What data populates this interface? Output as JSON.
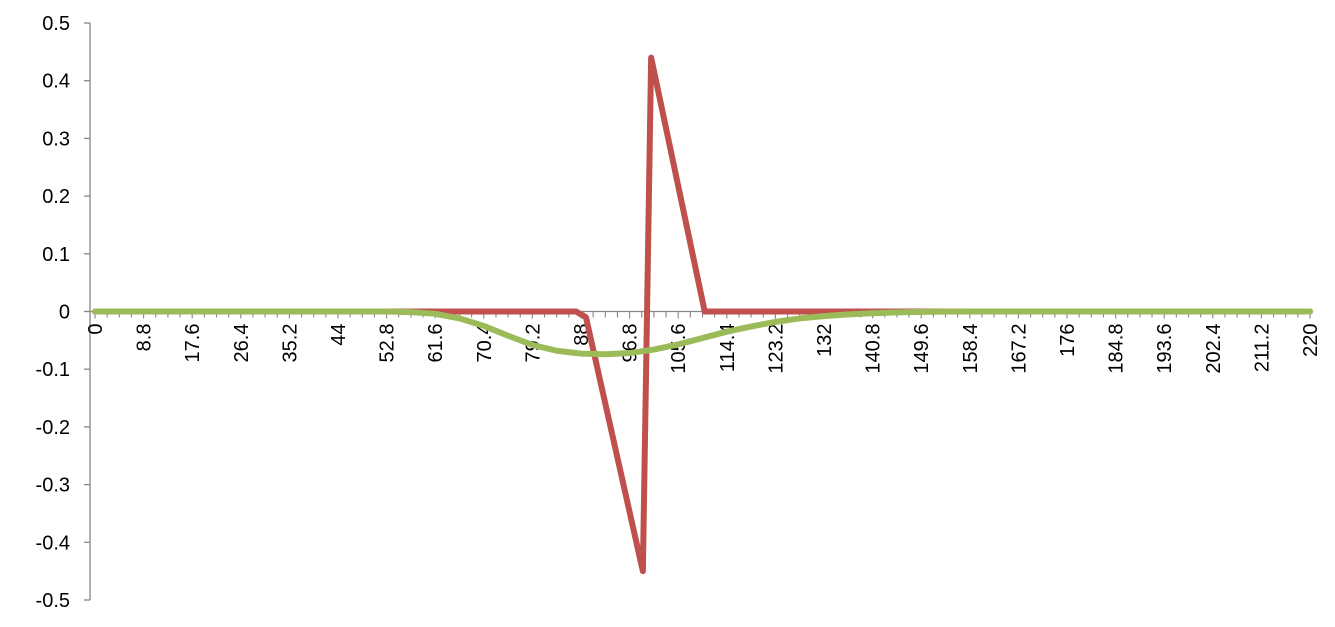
{
  "chart_data": {
    "type": "line",
    "title": "",
    "xlabel": "",
    "ylabel": "",
    "xlim": [
      0,
      220
    ],
    "ylim": [
      -0.5,
      0.5
    ],
    "grid": false,
    "legend": "none",
    "y_ticks": [
      "0.5",
      "0.4",
      "0.3",
      "0.2",
      "0.1",
      "0",
      "-0.1",
      "-0.2",
      "-0.3",
      "-0.4",
      "-0.5"
    ],
    "y_tick_values": [
      0.5,
      0.4,
      0.3,
      0.2,
      0.1,
      0,
      -0.1,
      -0.2,
      -0.3,
      -0.4,
      -0.5
    ],
    "x_ticks": [
      "0",
      "8.8",
      "17.6",
      "26.4",
      "35.2",
      "44",
      "52.8",
      "61.6",
      "70.4",
      "79.2",
      "88",
      "96.8",
      "105.6",
      "114.4",
      "123.2",
      "132",
      "140.8",
      "149.6",
      "158.4",
      "167.2",
      "176",
      "184.8",
      "193.6",
      "202.4",
      "211.2",
      "220"
    ],
    "x_tick_values": [
      0,
      8.8,
      17.6,
      26.4,
      35.2,
      44,
      52.8,
      61.6,
      70.4,
      79.2,
      88,
      96.8,
      105.6,
      114.4,
      123.2,
      132,
      140.8,
      149.6,
      158.4,
      167.2,
      176,
      184.8,
      193.6,
      202.4,
      211.2,
      220
    ],
    "series": [
      {
        "color": "#c0504d",
        "points": [
          [
            0,
            0
          ],
          [
            87.1,
            0
          ],
          [
            88.9,
            -0.01
          ],
          [
            99.2,
            -0.45
          ],
          [
            100.7,
            0.44
          ],
          [
            110.4,
            0
          ],
          [
            220,
            0
          ]
        ]
      },
      {
        "color": "#9bbb59",
        "points": [
          [
            0,
            0
          ],
          [
            52.8,
            0
          ],
          [
            57.2,
            -0.001
          ],
          [
            61.6,
            -0.004
          ],
          [
            66,
            -0.012
          ],
          [
            70.4,
            -0.025
          ],
          [
            74.8,
            -0.042
          ],
          [
            79.2,
            -0.058
          ],
          [
            83.6,
            -0.068
          ],
          [
            88,
            -0.073
          ],
          [
            92.4,
            -0.074
          ],
          [
            96.8,
            -0.072
          ],
          [
            101.2,
            -0.066
          ],
          [
            105.6,
            -0.057
          ],
          [
            110,
            -0.046
          ],
          [
            114.4,
            -0.035
          ],
          [
            118.8,
            -0.026
          ],
          [
            123.2,
            -0.018
          ],
          [
            127.6,
            -0.012
          ],
          [
            132,
            -0.008
          ],
          [
            136.4,
            -0.005
          ],
          [
            140.8,
            -0.003
          ],
          [
            145.2,
            -0.0015
          ],
          [
            149.6,
            -0.0007
          ],
          [
            154,
            -0.0003
          ],
          [
            158.4,
            0
          ],
          [
            220,
            0
          ]
        ]
      }
    ]
  }
}
